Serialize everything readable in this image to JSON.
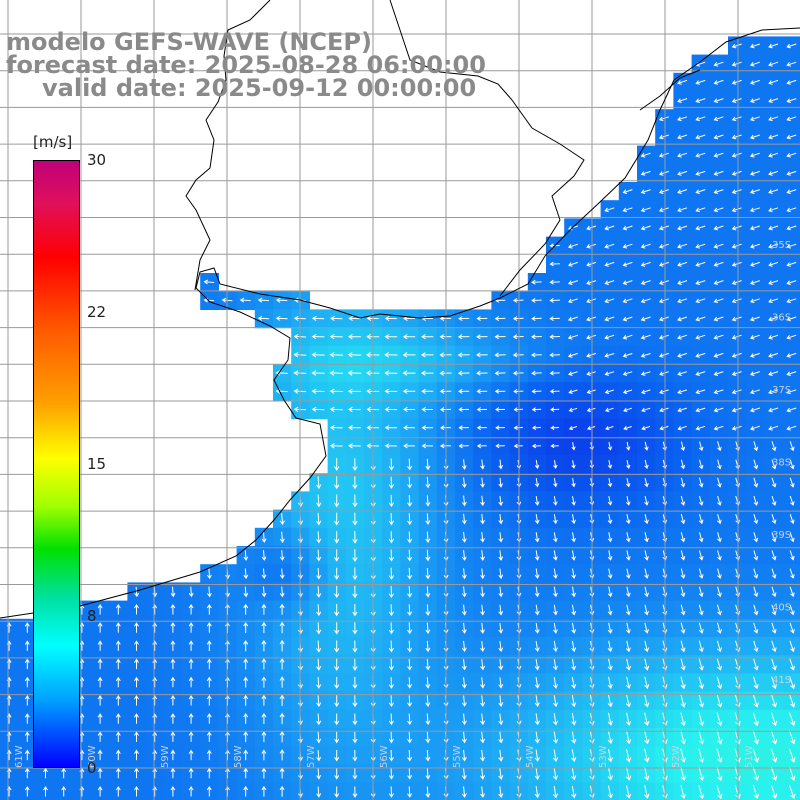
{
  "title": {
    "line1": "modelo GEFS-WAVE (NCEP)",
    "line2": "forecast date: 2025-08-28 06:00:00",
    "line3": "valid date: 2025-09-12 00:00:00"
  },
  "colorbar": {
    "unit": "[m/s]",
    "ticks": [
      "30",
      "22",
      "15",
      "8",
      "0"
    ],
    "colors": [
      "#c0007a",
      "#ff0000",
      "#ffa000",
      "#ffff00",
      "#00e000",
      "#00ffff",
      "#00a0ff",
      "#0000ff"
    ]
  },
  "lat_labels": [
    "35S",
    "36S",
    "37S",
    "38S",
    "39S",
    "40S",
    "41S"
  ],
  "lon_labels": [
    "61W",
    "60W",
    "59W",
    "58W",
    "57W",
    "56W",
    "55W",
    "54W",
    "53W",
    "52W",
    "51W"
  ],
  "colors": {
    "land": "#ffffff",
    "deep_blue": "#0a2ae6",
    "mid_blue": "#0a6cf0",
    "light_blue": "#1fb4f5",
    "cyan": "#2ff0f0",
    "arrow": "#ffffff",
    "grid": "#9a9a9a",
    "coast": "#000000"
  }
}
